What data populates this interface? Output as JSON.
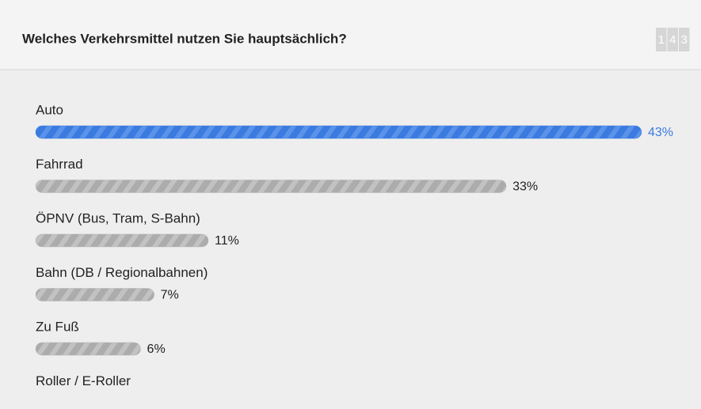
{
  "header": {
    "title": "Welches Verkehrsmittel nutzen Sie hauptsächlich?",
    "counter_digits": [
      "1",
      "4",
      "3"
    ]
  },
  "chart_data": {
    "type": "bar",
    "orientation": "horizontal",
    "categories": [
      "Auto",
      "Fahrrad",
      "ÖPNV (Bus, Tram, S-Bahn)",
      "Bahn (DB / Regionalbahnen)",
      "Zu Fuß",
      "Roller / E-Roller"
    ],
    "values": [
      43,
      33,
      11,
      7,
      6,
      null
    ],
    "value_labels": [
      "43%",
      "33%",
      "11%",
      "7%",
      "6%",
      null
    ],
    "color": "#b3b3b3",
    "highlight_color": "#3b7be0",
    "highlight_index": 0
  }
}
